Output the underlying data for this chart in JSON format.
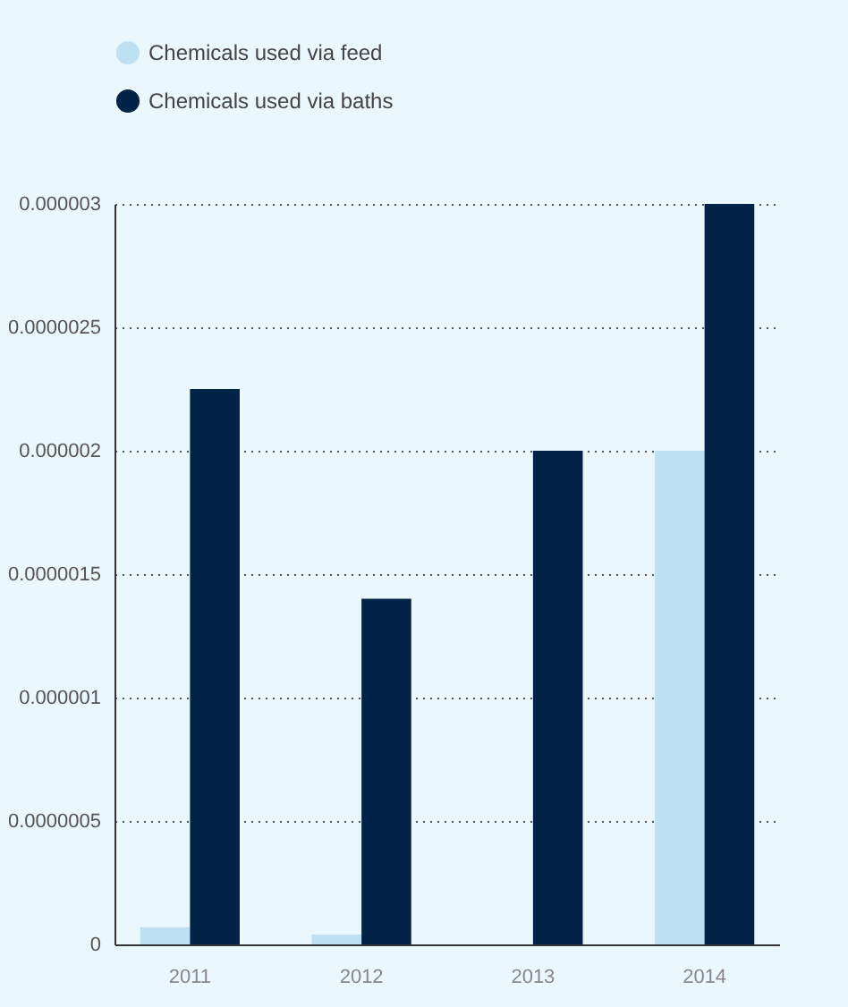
{
  "chart_data": {
    "type": "bar",
    "categories": [
      "2011",
      "2012",
      "2013",
      "2014"
    ],
    "series": [
      {
        "name": "Chemicals used via feed",
        "color": "#bee0f3",
        "values": [
          7e-08,
          4e-08,
          0,
          2e-06
        ]
      },
      {
        "name": "Chemicals used via baths",
        "color": "#002347",
        "values": [
          2.25e-06,
          1.4e-06,
          2e-06,
          3e-06
        ]
      }
    ],
    "ylim": [
      0,
      3e-06
    ],
    "yticks": [
      {
        "value": 0,
        "label": "0"
      },
      {
        "value": 5e-07,
        "label": "0.0000005"
      },
      {
        "value": 1e-06,
        "label": "0.000001"
      },
      {
        "value": 1.5e-06,
        "label": "0.0000015"
      },
      {
        "value": 2e-06,
        "label": "0.000002"
      },
      {
        "value": 2.5e-06,
        "label": "0.0000025"
      },
      {
        "value": 3e-06,
        "label": "0.000003"
      }
    ],
    "grid": "y",
    "legend": "top left"
  }
}
